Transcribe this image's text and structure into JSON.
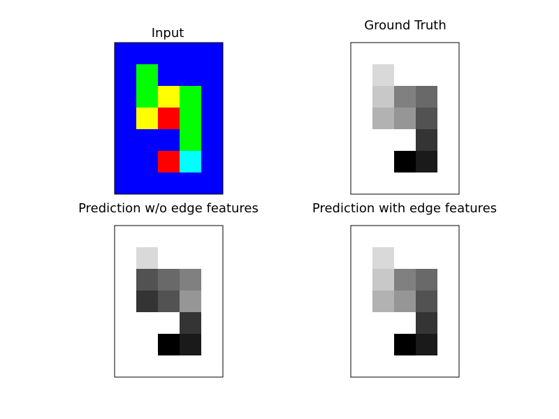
{
  "figure": {
    "background": "#ffffff",
    "frame_color": "#000000"
  },
  "chart_data": [
    {
      "type": "heatmap",
      "title": "Input",
      "mode": "rgb",
      "rows": 7,
      "cols": 5,
      "cells": [
        [
          "#0000ff",
          "#0000ff",
          "#0000ff",
          "#0000ff",
          "#0000ff"
        ],
        [
          "#0000ff",
          "#00ff00",
          "#0000ff",
          "#0000ff",
          "#0000ff"
        ],
        [
          "#0000ff",
          "#00ff00",
          "#ffff00",
          "#00ff00",
          "#0000ff"
        ],
        [
          "#0000ff",
          "#ffff00",
          "#ff0000",
          "#00ff00",
          "#0000ff"
        ],
        [
          "#0000ff",
          "#0000ff",
          "#0000ff",
          "#00ff00",
          "#0000ff"
        ],
        [
          "#0000ff",
          "#0000ff",
          "#ff0000",
          "#00ffff",
          "#0000ff"
        ],
        [
          "#0000ff",
          "#0000ff",
          "#0000ff",
          "#0000ff",
          "#0000ff"
        ]
      ]
    },
    {
      "type": "heatmap",
      "title": "Ground Truth",
      "mode": "gray",
      "rows": 7,
      "cols": 5,
      "cells": [
        [
          255,
          255,
          255,
          255,
          255
        ],
        [
          255,
          217,
          255,
          255,
          255
        ],
        [
          255,
          200,
          128,
          105,
          255
        ],
        [
          255,
          178,
          150,
          82,
          255
        ],
        [
          255,
          255,
          255,
          52,
          255
        ],
        [
          255,
          255,
          0,
          26,
          255
        ],
        [
          255,
          255,
          255,
          255,
          255
        ]
      ]
    },
    {
      "type": "heatmap",
      "title": "Prediction w/o edge features",
      "mode": "gray",
      "rows": 7,
      "cols": 5,
      "cells": [
        [
          255,
          255,
          255,
          255,
          255
        ],
        [
          255,
          217,
          255,
          255,
          255
        ],
        [
          255,
          82,
          105,
          128,
          255
        ],
        [
          255,
          52,
          82,
          150,
          255
        ],
        [
          255,
          255,
          255,
          52,
          255
        ],
        [
          255,
          255,
          0,
          26,
          255
        ],
        [
          255,
          255,
          255,
          255,
          255
        ]
      ]
    },
    {
      "type": "heatmap",
      "title": "Prediction with edge features",
      "mode": "gray",
      "rows": 7,
      "cols": 5,
      "cells": [
        [
          255,
          255,
          255,
          255,
          255
        ],
        [
          255,
          217,
          255,
          255,
          255
        ],
        [
          255,
          200,
          128,
          105,
          255
        ],
        [
          255,
          178,
          150,
          82,
          255
        ],
        [
          255,
          255,
          255,
          52,
          255
        ],
        [
          255,
          255,
          0,
          26,
          255
        ],
        [
          255,
          255,
          255,
          255,
          255
        ]
      ]
    }
  ]
}
